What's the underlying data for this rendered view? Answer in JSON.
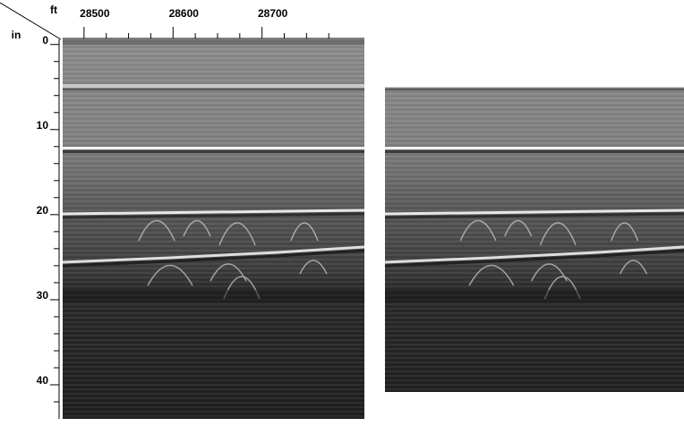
{
  "chart_data": {
    "type": "radargram",
    "x_label": "ft",
    "y_label": "in",
    "xlim": [
      28476,
      28815
    ],
    "xticks": [
      28500,
      28600,
      28700
    ],
    "xminorticks": [
      28525,
      28550,
      28575,
      28625,
      28650,
      28675,
      28725,
      28750,
      28775
    ],
    "ylim": [
      -0.6,
      44
    ],
    "yticks": [
      0,
      10,
      20,
      30,
      40
    ],
    "yminorticks": [
      2,
      4,
      6,
      8,
      12,
      14,
      16,
      18,
      22,
      24,
      26,
      28,
      32,
      34,
      36,
      38,
      42
    ]
  }
}
